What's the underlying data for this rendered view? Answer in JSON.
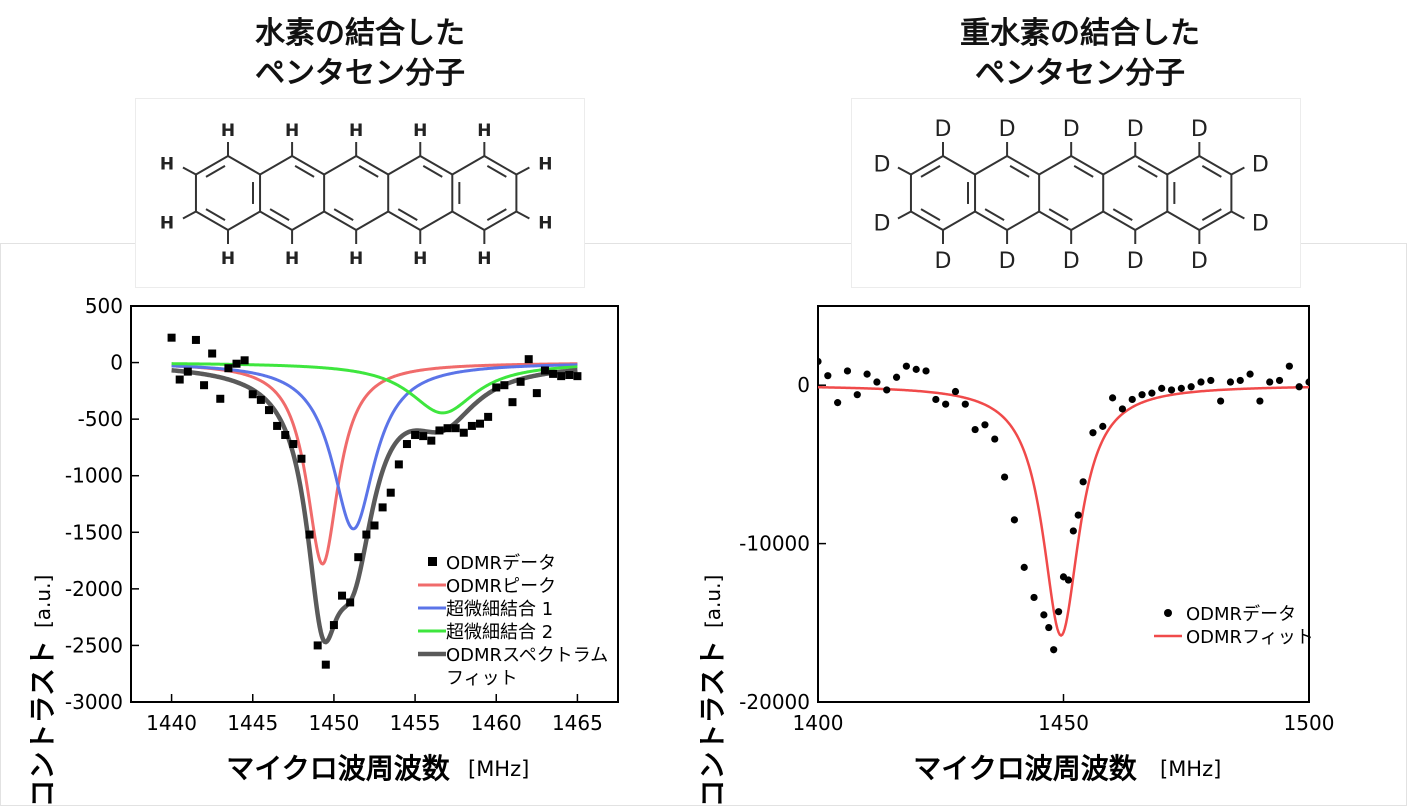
{
  "left": {
    "title_line1": "水素の結合した",
    "title_line2": "ペンタセン分子",
    "atom_label": "H"
  },
  "right": {
    "title_line1": "重水素の結合した",
    "title_line2": "ペンタセン分子",
    "atom_label": "D"
  },
  "colors": {
    "data": "#000000",
    "peak": "#f06b6b",
    "hf1": "#5b74e8",
    "hf2": "#3ee63e",
    "fit": "#5a5a5a",
    "odmr_fit": "#f04a4a"
  },
  "chart_data": [
    {
      "type": "scatter",
      "xlabel": "マイクロ波周波数",
      "xunit": "[MHz]",
      "ylabel": "コントラスト",
      "yunit": "[a.u.]",
      "xlim": [
        1437.5,
        1467.5
      ],
      "ylim": [
        -3000,
        500
      ],
      "xticks": [
        1440,
        1445,
        1450,
        1455,
        1460,
        1465
      ],
      "yticks": [
        500,
        0,
        -500,
        -1000,
        -1500,
        -2000,
        -2500,
        -3000
      ],
      "legend_position": "lower-right",
      "legend": [
        "ODMRデータ",
        "ODMRピーク",
        "超微細結合 1",
        "超微細結合 2",
        "ODMRスペクトラム",
        "フィット"
      ],
      "series": [
        {
          "name": "ODMRデータ",
          "kind": "scatter",
          "marker": "square",
          "x": [
            1440,
            1440.5,
            1441,
            1441.5,
            1442,
            1442.5,
            1443,
            1443.5,
            1444,
            1444.5,
            1445,
            1445.5,
            1446,
            1446.5,
            1447,
            1447.5,
            1448,
            1448.5,
            1449,
            1449.5,
            1450,
            1450.5,
            1451,
            1451.5,
            1452,
            1452.5,
            1453,
            1453.5,
            1454,
            1454.5,
            1455,
            1455.5,
            1456,
            1456.5,
            1457,
            1457.5,
            1458,
            1458.5,
            1459,
            1459.5,
            1460,
            1460.5,
            1461,
            1461.5,
            1462,
            1462.5,
            1463,
            1463.5,
            1464,
            1464.5,
            1465
          ],
          "y": [
            220,
            -150,
            -80,
            200,
            -200,
            80,
            -320,
            -50,
            -10,
            20,
            -280,
            -330,
            -420,
            -560,
            -640,
            -720,
            -850,
            -1520,
            -2500,
            -2670,
            -2320,
            -2060,
            -2120,
            -1720,
            -1520,
            -1440,
            -1280,
            -1150,
            -900,
            -720,
            -640,
            -650,
            -690,
            -600,
            -580,
            -580,
            -620,
            -560,
            -540,
            -480,
            -220,
            -200,
            -350,
            -170,
            30,
            -270,
            -70,
            -100,
            -120,
            -110,
            -120
          ]
        },
        {
          "name": "ODMRピーク",
          "kind": "line",
          "center": 1449.3,
          "amplitude": -1780,
          "hwhm": 1.2,
          "x_range": [
            1440,
            1465
          ]
        },
        {
          "name": "超微細結合 1",
          "kind": "line",
          "center": 1451.2,
          "amplitude": -1470,
          "hwhm": 1.6,
          "x_range": [
            1440,
            1465
          ]
        },
        {
          "name": "超微細結合 2",
          "kind": "line",
          "center": 1456.7,
          "amplitude": -445,
          "hwhm": 2.5,
          "x_range": [
            1440,
            1465
          ]
        },
        {
          "name": "ODMRスペクトラム フィット",
          "kind": "line",
          "components": [
            "ODMRピーク",
            "超微細結合 1",
            "超微細結合 2"
          ],
          "x_range": [
            1440,
            1465
          ]
        }
      ]
    },
    {
      "type": "scatter",
      "xlabel": "マイクロ波周波数",
      "xunit": "[MHz]",
      "ylabel": "コントラスト",
      "yunit": "[a.u.]",
      "xlim": [
        1400,
        1500
      ],
      "ylim": [
        -20000,
        5000
      ],
      "xticks": [
        1400,
        1450,
        1500
      ],
      "yticks": [
        0,
        -10000,
        -20000
      ],
      "legend_position": "lower-right",
      "legend": [
        "ODMRデータ",
        "ODMRフィット"
      ],
      "series": [
        {
          "name": "ODMRデータ",
          "kind": "scatter",
          "marker": "circle",
          "x": [
            1400,
            1402,
            1404,
            1406,
            1408,
            1410,
            1412,
            1414,
            1416,
            1418,
            1420,
            1422,
            1424,
            1426,
            1428,
            1430,
            1432,
            1434,
            1436,
            1438,
            1440,
            1442,
            1444,
            1446,
            1447,
            1448,
            1449,
            1450,
            1451,
            1452,
            1453,
            1454,
            1456,
            1458,
            1460,
            1462,
            1464,
            1466,
            1468,
            1470,
            1472,
            1474,
            1476,
            1478,
            1480,
            1482,
            1484,
            1486,
            1488,
            1490,
            1492,
            1494,
            1496,
            1498,
            1500
          ],
          "y": [
            1500,
            600,
            -1100,
            900,
            -600,
            700,
            200,
            -300,
            500,
            1200,
            1000,
            900,
            -900,
            -1200,
            -400,
            -1200,
            -2800,
            -2500,
            -3400,
            -5800,
            -8500,
            -11500,
            -13400,
            -14500,
            -15300,
            -16700,
            -14300,
            -12100,
            -12300,
            -9200,
            -8200,
            -6100,
            -3000,
            -2600,
            -800,
            -1500,
            -900,
            -600,
            -500,
            -200,
            -300,
            -200,
            -100,
            200,
            300,
            -1000,
            200,
            300,
            700,
            -1000,
            200,
            300,
            1200,
            -100,
            200
          ]
        },
        {
          "name": "ODMRフィット",
          "kind": "line",
          "center": 1449.5,
          "amplitude": -15800,
          "hwhm": 4.5,
          "x_range": [
            1400,
            1500
          ]
        }
      ]
    }
  ]
}
